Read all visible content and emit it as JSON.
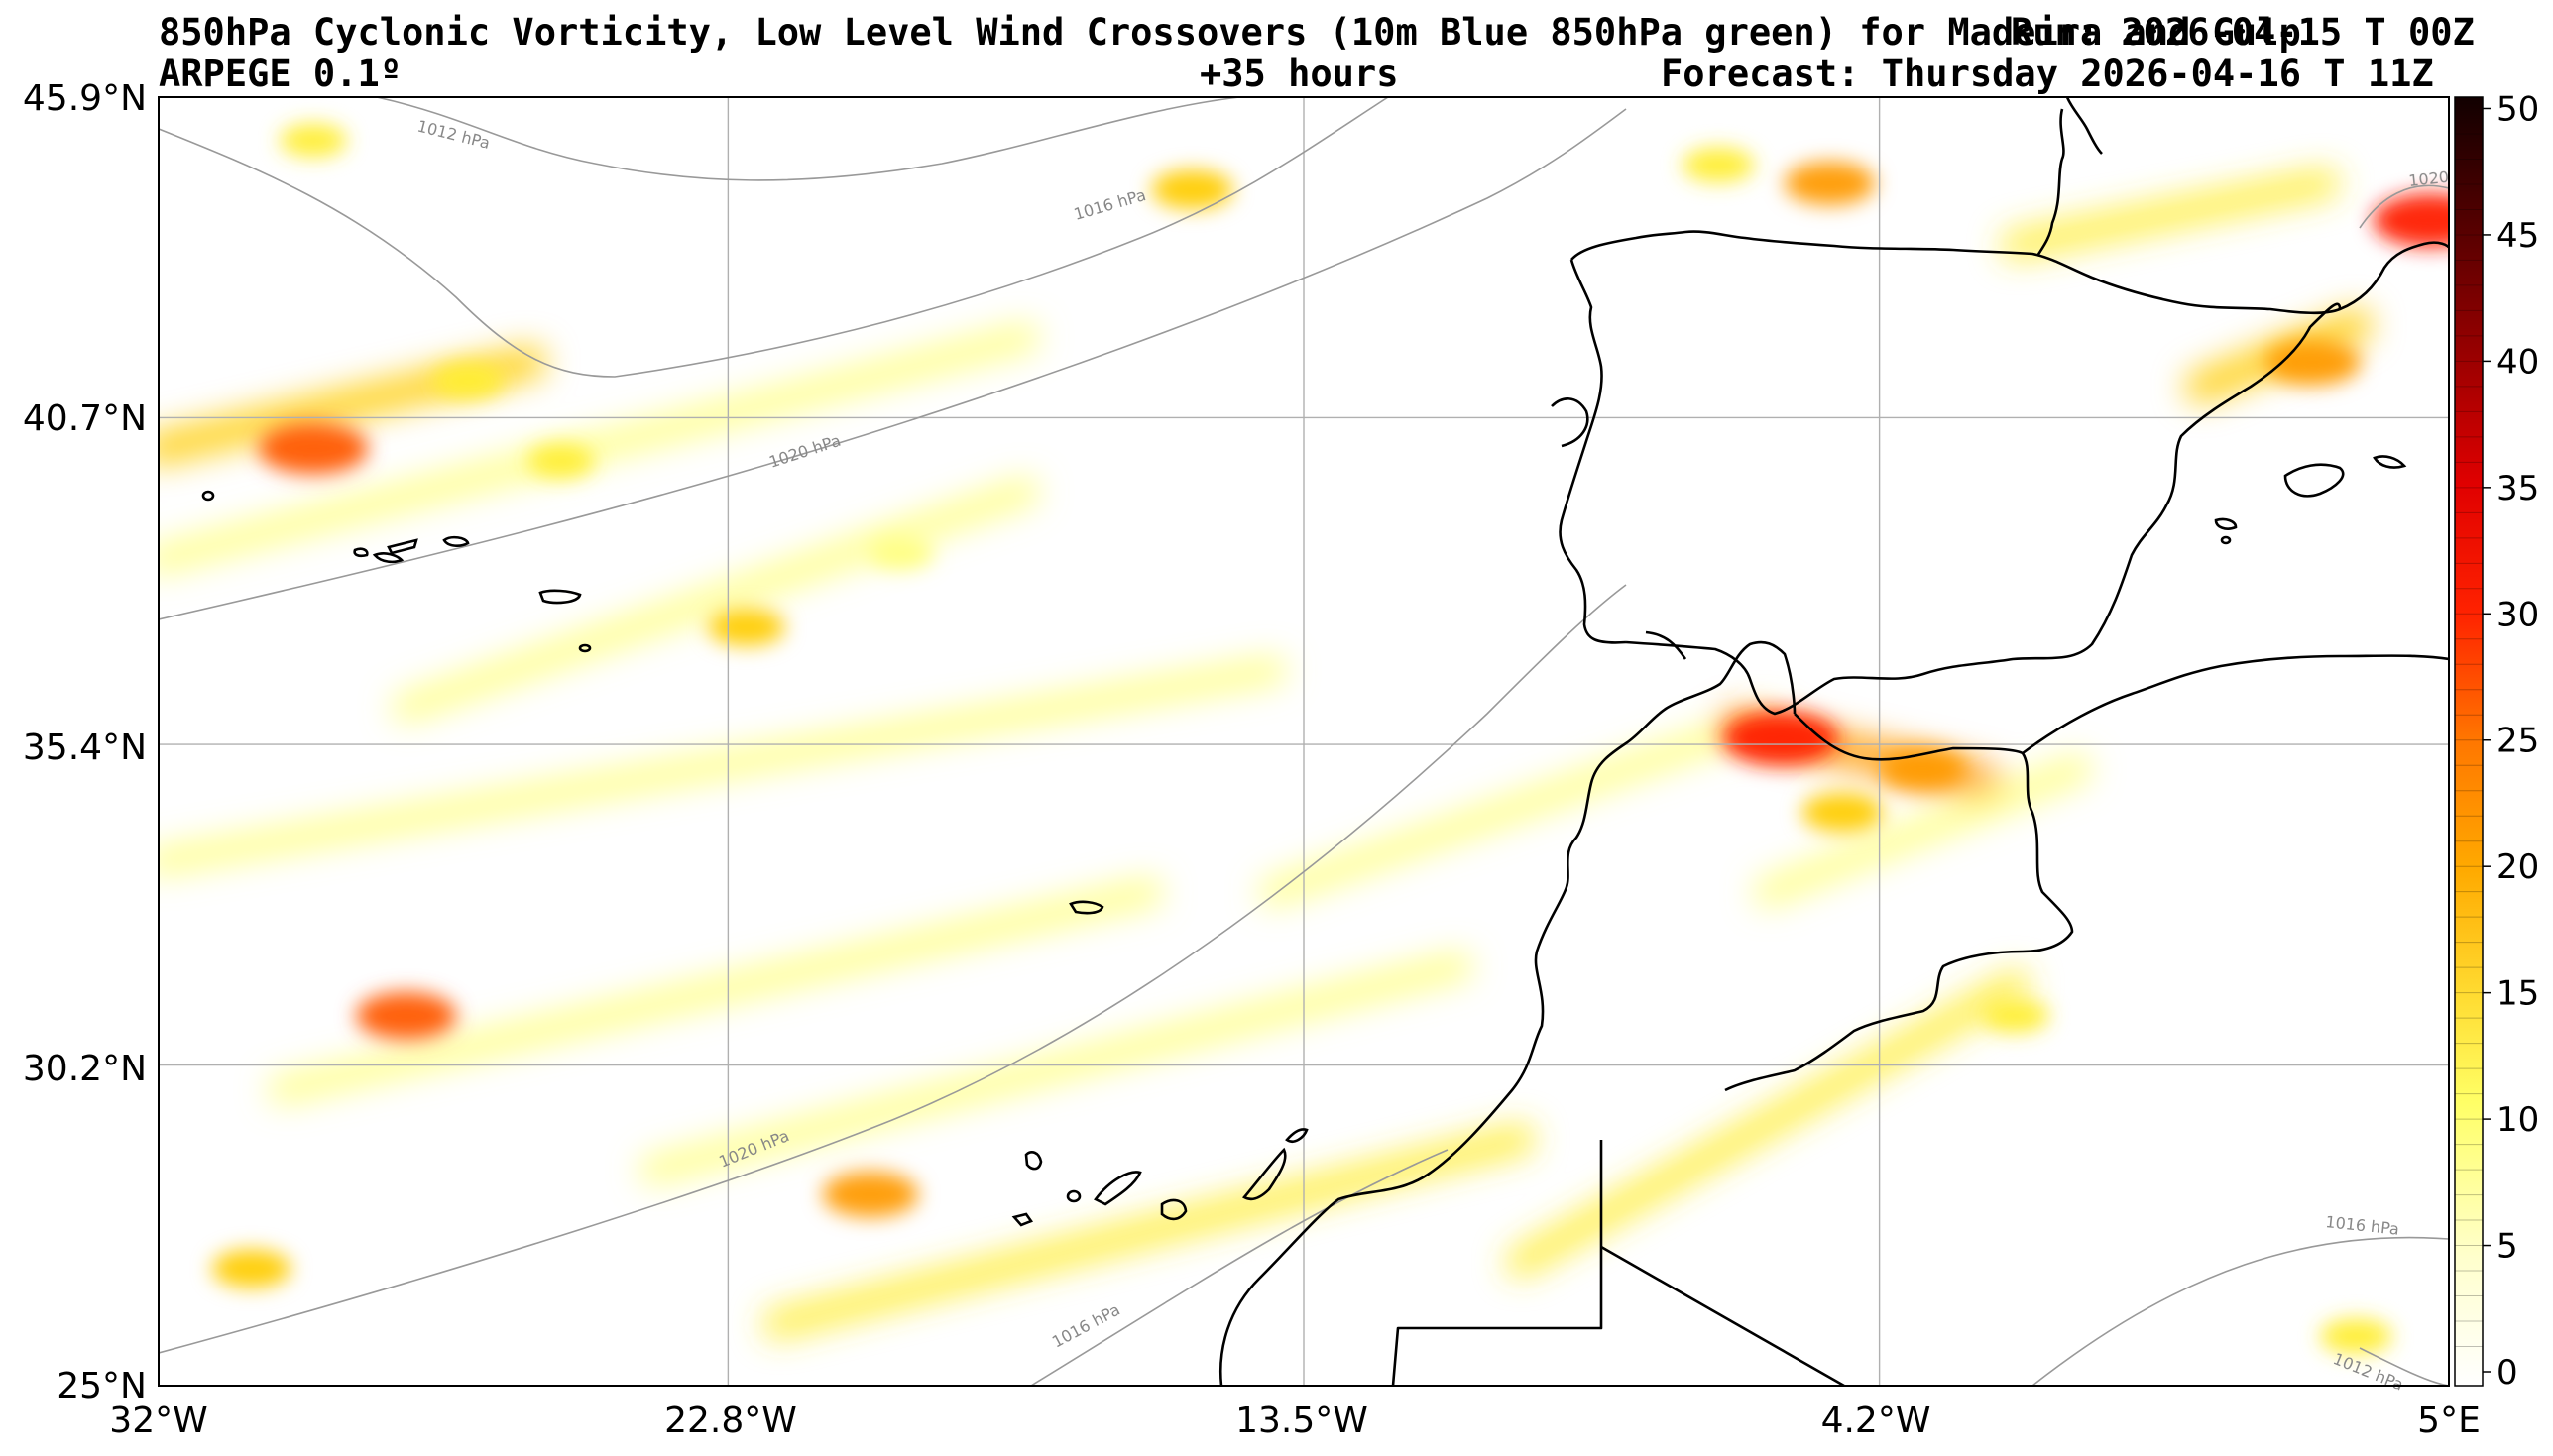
{
  "header": {
    "title_line1": "850hPa Cyclonic Vorticity, Low Level Wind Crossovers (10m Blue 850hPa green) for Madeira and Gulp",
    "title_overlay": "Run: 2026-04-15 T 00Z",
    "model": "ARPEGE 0.1º",
    "lead": "+35 hours",
    "forecast": "Forecast: Thursday 2026-04-16 T 11Z"
  },
  "map": {
    "lat_labels": [
      "45.9°N",
      "40.7°N",
      "35.4°N",
      "30.2°N",
      "25°N"
    ],
    "lon_labels": [
      "32°W",
      "22.8°W",
      "13.5°W",
      "4.2°W",
      "5°E"
    ],
    "isobars": [
      "1012 hPa",
      "1016 hPa",
      "1020 hPa",
      "1020 hPa",
      "1016 hPa",
      "1016 hPa",
      "1012 hPa",
      "1020 hPa"
    ]
  },
  "colorbar": {
    "ticks": [
      "0",
      "5",
      "10",
      "15",
      "20",
      "25",
      "30",
      "35",
      "40",
      "45",
      "50"
    ],
    "min": 0,
    "max": 51
  },
  "colors": {
    "low": "#ffff66",
    "mid": "#ff9900",
    "high": "#ff0000",
    "max": "#1a0000",
    "grid": "#b0b0b0",
    "coast": "#000000",
    "isobar": "#999999"
  },
  "vorticity_blobs": [
    {
      "lon": -29.5,
      "lat": 40.2,
      "value": 28
    },
    {
      "lon": -27.0,
      "lat": 41.3,
      "value": 12
    },
    {
      "lon": -25.5,
      "lat": 40.0,
      "value": 10
    },
    {
      "lon": -22.5,
      "lat": 37.3,
      "value": 14
    },
    {
      "lon": -20.0,
      "lat": 38.5,
      "value": 9
    },
    {
      "lon": -28.0,
      "lat": 31.0,
      "value": 24
    },
    {
      "lon": -20.5,
      "lat": 28.1,
      "value": 22
    },
    {
      "lon": -30.5,
      "lat": 26.9,
      "value": 15
    },
    {
      "lon": -15.3,
      "lat": 44.4,
      "value": 16
    },
    {
      "lon": -5.0,
      "lat": 44.5,
      "value": 20
    },
    {
      "lon": -6.8,
      "lat": 44.8,
      "value": 12
    },
    {
      "lon": -5.8,
      "lat": 35.5,
      "value": 30
    },
    {
      "lon": -3.5,
      "lat": 35.0,
      "value": 18
    },
    {
      "lon": -4.8,
      "lat": 34.3,
      "value": 16
    },
    {
      "lon": 2.8,
      "lat": 41.6,
      "value": 22
    },
    {
      "lon": 4.7,
      "lat": 43.9,
      "value": 30
    },
    {
      "lon": -2.0,
      "lat": 31.0,
      "value": 10
    },
    {
      "lon": 3.5,
      "lat": 25.8,
      "value": 12
    },
    {
      "lon": -29.5,
      "lat": 45.2,
      "value": 10
    }
  ],
  "vorticity_bands": [
    {
      "from": [
        -32.0,
        40.2
      ],
      "to": [
        -26.0,
        41.6
      ],
      "value": 14
    },
    {
      "from": [
        -32.0,
        38.4
      ],
      "to": [
        -18.0,
        42.0
      ],
      "value": 9
    },
    {
      "from": [
        -28.0,
        36.0
      ],
      "to": [
        -18.0,
        39.5
      ],
      "value": 9
    },
    {
      "from": [
        -32.0,
        33.5
      ],
      "to": [
        -14.0,
        36.6
      ],
      "value": 8
    },
    {
      "from": [
        -30.0,
        29.8
      ],
      "to": [
        -16.0,
        33.0
      ],
      "value": 9
    },
    {
      "from": [
        -24.0,
        28.5
      ],
      "to": [
        -11.0,
        31.8
      ],
      "value": 9
    },
    {
      "from": [
        -22.0,
        26.0
      ],
      "to": [
        -10.0,
        29.0
      ],
      "value": 11
    },
    {
      "from": [
        -14.0,
        33.0
      ],
      "to": [
        -6.0,
        35.8
      ],
      "value": 8
    },
    {
      "from": [
        -10.0,
        27.0
      ],
      "to": [
        -2.0,
        31.5
      ],
      "value": 10
    },
    {
      "from": [
        -6.5,
        35.7
      ],
      "to": [
        -2.5,
        34.8
      ],
      "value": 18
    },
    {
      "from": [
        -2.0,
        43.5
      ],
      "to": [
        3.0,
        44.5
      ],
      "value": 10
    },
    {
      "from": [
        1.0,
        41.2
      ],
      "to": [
        3.5,
        42.2
      ],
      "value": 14
    },
    {
      "from": [
        -6.0,
        33.0
      ],
      "to": [
        -1.0,
        35.0
      ],
      "value": 9
    }
  ]
}
